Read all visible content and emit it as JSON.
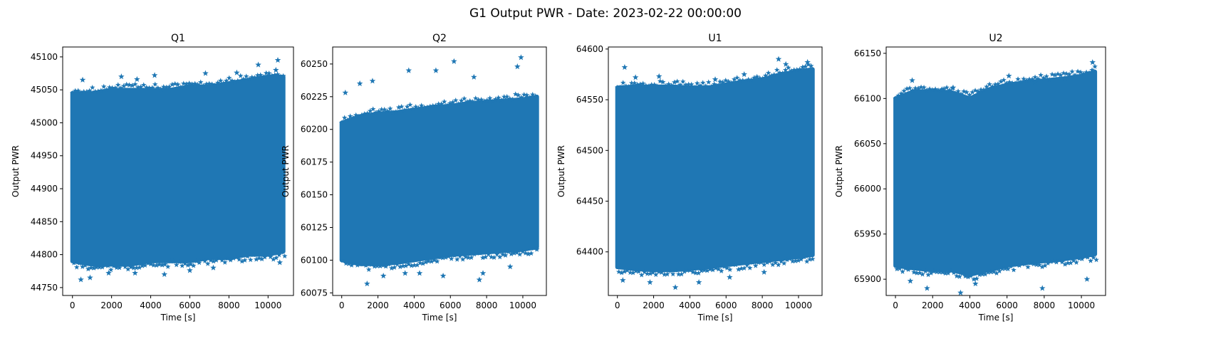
{
  "figure": {
    "suptitle": "G1 Output PWR - Date: 2023-02-22 00:00:00",
    "marker_color": "#1f77b4",
    "marker": "star"
  },
  "chart_data": [
    {
      "type": "scatter",
      "title": "Q1",
      "xlabel": "Time [s]",
      "ylabel": "Output PWR",
      "xlim": [
        -500,
        11300
      ],
      "ylim": [
        44738,
        45115
      ],
      "xticks": [
        0,
        2000,
        4000,
        6000,
        8000,
        10000
      ],
      "yticks": [
        44750,
        44800,
        44850,
        44900,
        44950,
        45000,
        45050,
        45100
      ],
      "x_range": [
        0,
        10800
      ],
      "band": {
        "x": [
          0,
          1000,
          2000,
          3000,
          4000,
          5000,
          6000,
          7000,
          8000,
          9000,
          10000,
          10800
        ],
        "low": [
          44790,
          44785,
          44785,
          44785,
          44790,
          44790,
          44790,
          44795,
          44795,
          44800,
          44800,
          44805
        ],
        "high": [
          45045,
          45045,
          45050,
          45050,
          45050,
          45050,
          45055,
          45055,
          45060,
          45065,
          45070,
          45070
        ]
      },
      "outliers": [
        [
          430,
          44762
        ],
        [
          900,
          44765
        ],
        [
          1850,
          44772
        ],
        [
          3200,
          44772
        ],
        [
          4700,
          44770
        ],
        [
          6000,
          44776
        ],
        [
          7200,
          44780
        ],
        [
          10600,
          44788
        ],
        [
          520,
          45065
        ],
        [
          2500,
          45070
        ],
        [
          3300,
          45066
        ],
        [
          4200,
          45072
        ],
        [
          6800,
          45075
        ],
        [
          8400,
          45076
        ],
        [
          9500,
          45088
        ],
        [
          10500,
          45095
        ],
        [
          10400,
          45080
        ]
      ]
    },
    {
      "type": "scatter",
      "title": "Q2",
      "xlabel": "Time [s]",
      "ylabel": "Output PWR",
      "xlim": [
        -500,
        11300
      ],
      "ylim": [
        60073,
        60263
      ],
      "xticks": [
        0,
        2000,
        4000,
        6000,
        8000,
        10000
      ],
      "yticks": [
        60075,
        60100,
        60125,
        60150,
        60175,
        60200,
        60225,
        60250
      ],
      "x_range": [
        0,
        10800
      ],
      "band": {
        "x": [
          0,
          1000,
          2000,
          3000,
          4000,
          5000,
          6000,
          7000,
          8000,
          9000,
          10000,
          10800
        ],
        "low": [
          60100,
          60097,
          60097,
          60098,
          60100,
          60102,
          60104,
          60105,
          60106,
          60107,
          60108,
          60110
        ],
        "high": [
          60205,
          60210,
          60212,
          60213,
          60215,
          60217,
          60218,
          60220,
          60221,
          60222,
          60223,
          60225
        ]
      },
      "outliers": [
        [
          1400,
          60082
        ],
        [
          2300,
          60088
        ],
        [
          3500,
          60090
        ],
        [
          4300,
          60090
        ],
        [
          5600,
          60088
        ],
        [
          7600,
          60085
        ],
        [
          7800,
          60090
        ],
        [
          9300,
          60095
        ],
        [
          200,
          60228
        ],
        [
          1000,
          60235
        ],
        [
          1700,
          60237
        ],
        [
          3700,
          60245
        ],
        [
          5200,
          60245
        ],
        [
          6200,
          60252
        ],
        [
          7300,
          60240
        ],
        [
          9700,
          60248
        ],
        [
          9900,
          60255
        ]
      ]
    },
    {
      "type": "scatter",
      "title": "U1",
      "xlabel": "Time [s]",
      "ylabel": "Output PWR",
      "xlim": [
        -500,
        11300
      ],
      "ylim": [
        64357,
        64602
      ],
      "xticks": [
        0,
        2000,
        4000,
        6000,
        8000,
        10000
      ],
      "yticks": [
        64400,
        64450,
        64500,
        64550,
        64600
      ],
      "x_range": [
        0,
        10800
      ],
      "band": {
        "x": [
          0,
          1000,
          2000,
          3000,
          4000,
          5000,
          6000,
          7000,
          8000,
          9000,
          10000,
          10800
        ],
        "low": [
          64385,
          64383,
          64382,
          64382,
          64383,
          64385,
          64387,
          64389,
          64391,
          64393,
          64395,
          64397
        ],
        "high": [
          64562,
          64563,
          64563,
          64563,
          64562,
          64562,
          64565,
          64568,
          64570,
          64575,
          64578,
          64580
        ]
      },
      "outliers": [
        [
          300,
          64372
        ],
        [
          1800,
          64370
        ],
        [
          3200,
          64365
        ],
        [
          4500,
          64370
        ],
        [
          6200,
          64375
        ],
        [
          8100,
          64380
        ],
        [
          400,
          64582
        ],
        [
          1000,
          64572
        ],
        [
          2300,
          64573
        ],
        [
          5400,
          64570
        ],
        [
          7000,
          64575
        ],
        [
          8900,
          64590
        ],
        [
          9300,
          64585
        ],
        [
          10500,
          64587
        ]
      ]
    },
    {
      "type": "scatter",
      "title": "U2",
      "xlabel": "Time [s]",
      "ylabel": "Output PWR",
      "xlim": [
        -500,
        11300
      ],
      "ylim": [
        65882,
        66157
      ],
      "xticks": [
        0,
        2000,
        4000,
        6000,
        8000,
        10000
      ],
      "yticks": [
        65900,
        65950,
        66000,
        66050,
        66100,
        66150
      ],
      "x_range": [
        0,
        10800
      ],
      "band": {
        "x": [
          0,
          1000,
          2000,
          3000,
          4000,
          5000,
          6000,
          7000,
          8000,
          9000,
          10000,
          10800
        ],
        "low": [
          65915,
          65912,
          65910,
          65910,
          65905,
          65910,
          65915,
          65918,
          65920,
          65922,
          65925,
          65928
        ],
        "high": [
          66100,
          66108,
          66108,
          66107,
          66100,
          66110,
          66115,
          66118,
          66120,
          66122,
          66125,
          66130
        ]
      },
      "outliers": [
        [
          800,
          65898
        ],
        [
          1700,
          65890
        ],
        [
          3500,
          65885
        ],
        [
          4300,
          65895
        ],
        [
          7900,
          65890
        ],
        [
          10300,
          65900
        ],
        [
          900,
          66120
        ],
        [
          2500,
          66110
        ],
        [
          3100,
          66112
        ],
        [
          6100,
          66125
        ],
        [
          7500,
          66118
        ],
        [
          9100,
          66122
        ],
        [
          10600,
          66140
        ]
      ]
    }
  ]
}
